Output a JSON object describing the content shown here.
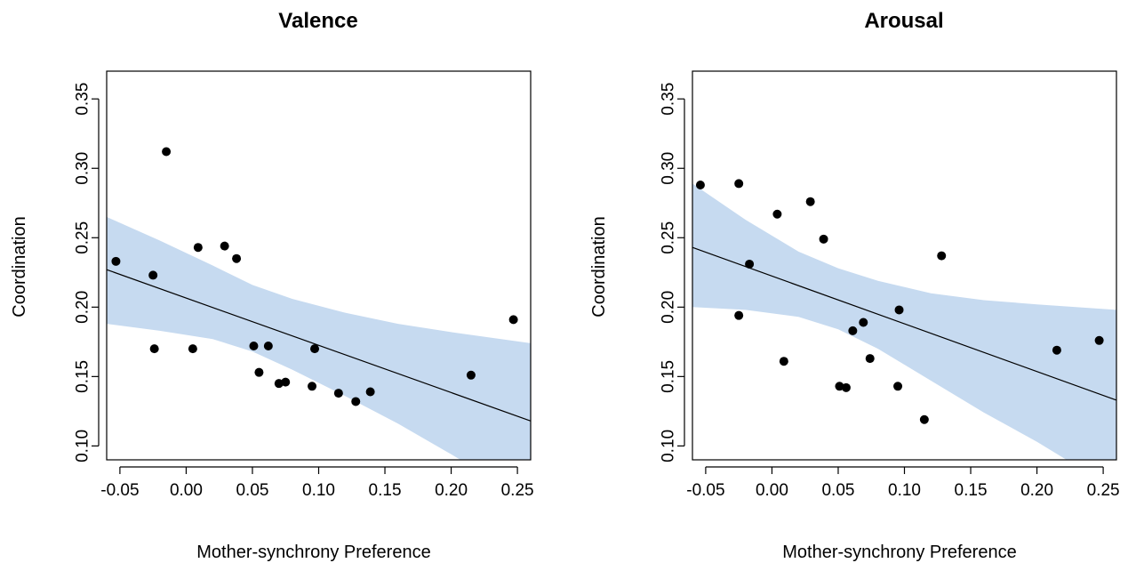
{
  "chart_data": [
    {
      "type": "scatter",
      "title": "Valence",
      "xlabel": "Mother-synchrony Preference",
      "ylabel": "Coordination",
      "xlim": [
        -0.06,
        0.26
      ],
      "ylim": [
        0.09,
        0.37
      ],
      "x_ticks": [
        "-0.05",
        "0.00",
        "0.05",
        "0.10",
        "0.15",
        "0.20",
        "0.25"
      ],
      "y_ticks": [
        "0.10",
        "0.15",
        "0.20",
        "0.25",
        "0.30",
        "0.35"
      ],
      "grid": false,
      "colors": {
        "points": "#000000",
        "fit_line": "#000000",
        "ci_band": "#c6daf0"
      },
      "points": [
        {
          "x": -0.053,
          "y": 0.233
        },
        {
          "x": -0.025,
          "y": 0.223
        },
        {
          "x": -0.024,
          "y": 0.17
        },
        {
          "x": -0.015,
          "y": 0.312
        },
        {
          "x": 0.005,
          "y": 0.17
        },
        {
          "x": 0.009,
          "y": 0.243
        },
        {
          "x": 0.029,
          "y": 0.244
        },
        {
          "x": 0.038,
          "y": 0.235
        },
        {
          "x": 0.051,
          "y": 0.172
        },
        {
          "x": 0.055,
          "y": 0.153
        },
        {
          "x": 0.062,
          "y": 0.172
        },
        {
          "x": 0.07,
          "y": 0.145
        },
        {
          "x": 0.075,
          "y": 0.146
        },
        {
          "x": 0.095,
          "y": 0.143
        },
        {
          "x": 0.097,
          "y": 0.17
        },
        {
          "x": 0.115,
          "y": 0.138
        },
        {
          "x": 0.128,
          "y": 0.132
        },
        {
          "x": 0.139,
          "y": 0.139
        },
        {
          "x": 0.215,
          "y": 0.151
        },
        {
          "x": 0.247,
          "y": 0.191
        }
      ],
      "fit_line": [
        {
          "x": -0.06,
          "y": 0.227
        },
        {
          "x": 0.26,
          "y": 0.118
        }
      ],
      "confidence_band": {
        "x": [
          -0.06,
          -0.02,
          0.02,
          0.05,
          0.08,
          0.12,
          0.16,
          0.2,
          0.26
        ],
        "upper": [
          0.265,
          0.248,
          0.23,
          0.216,
          0.206,
          0.196,
          0.188,
          0.182,
          0.174
        ],
        "lower": [
          0.188,
          0.183,
          0.177,
          0.168,
          0.155,
          0.136,
          0.116,
          0.094,
          0.06
        ]
      }
    },
    {
      "type": "scatter",
      "title": "Arousal",
      "xlabel": "Mother-synchrony Preference",
      "ylabel": "Coordination",
      "xlim": [
        -0.06,
        0.26
      ],
      "ylim": [
        0.09,
        0.37
      ],
      "x_ticks": [
        "-0.05",
        "0.00",
        "0.05",
        "0.10",
        "0.15",
        "0.20",
        "0.25"
      ],
      "y_ticks": [
        "0.10",
        "0.15",
        "0.20",
        "0.25",
        "0.30",
        "0.35"
      ],
      "grid": false,
      "colors": {
        "points": "#000000",
        "fit_line": "#000000",
        "ci_band": "#c6daf0"
      },
      "points": [
        {
          "x": -0.054,
          "y": 0.288
        },
        {
          "x": -0.025,
          "y": 0.289
        },
        {
          "x": -0.025,
          "y": 0.194
        },
        {
          "x": -0.017,
          "y": 0.231
        },
        {
          "x": 0.004,
          "y": 0.267
        },
        {
          "x": 0.009,
          "y": 0.161
        },
        {
          "x": 0.029,
          "y": 0.276
        },
        {
          "x": 0.039,
          "y": 0.249
        },
        {
          "x": 0.051,
          "y": 0.143
        },
        {
          "x": 0.056,
          "y": 0.142
        },
        {
          "x": 0.061,
          "y": 0.183
        },
        {
          "x": 0.069,
          "y": 0.189
        },
        {
          "x": 0.074,
          "y": 0.163
        },
        {
          "x": 0.095,
          "y": 0.143
        },
        {
          "x": 0.096,
          "y": 0.198
        },
        {
          "x": 0.115,
          "y": 0.119
        },
        {
          "x": 0.128,
          "y": 0.237
        },
        {
          "x": 0.215,
          "y": 0.169
        },
        {
          "x": 0.247,
          "y": 0.176
        }
      ],
      "fit_line": [
        {
          "x": -0.06,
          "y": 0.243
        },
        {
          "x": 0.26,
          "y": 0.133
        }
      ],
      "confidence_band": {
        "x": [
          -0.06,
          -0.02,
          0.02,
          0.05,
          0.08,
          0.12,
          0.16,
          0.2,
          0.26
        ],
        "upper": [
          0.289,
          0.263,
          0.24,
          0.228,
          0.219,
          0.21,
          0.205,
          0.202,
          0.198
        ],
        "lower": [
          0.2,
          0.198,
          0.193,
          0.184,
          0.17,
          0.147,
          0.124,
          0.103,
          0.068
        ]
      }
    }
  ]
}
